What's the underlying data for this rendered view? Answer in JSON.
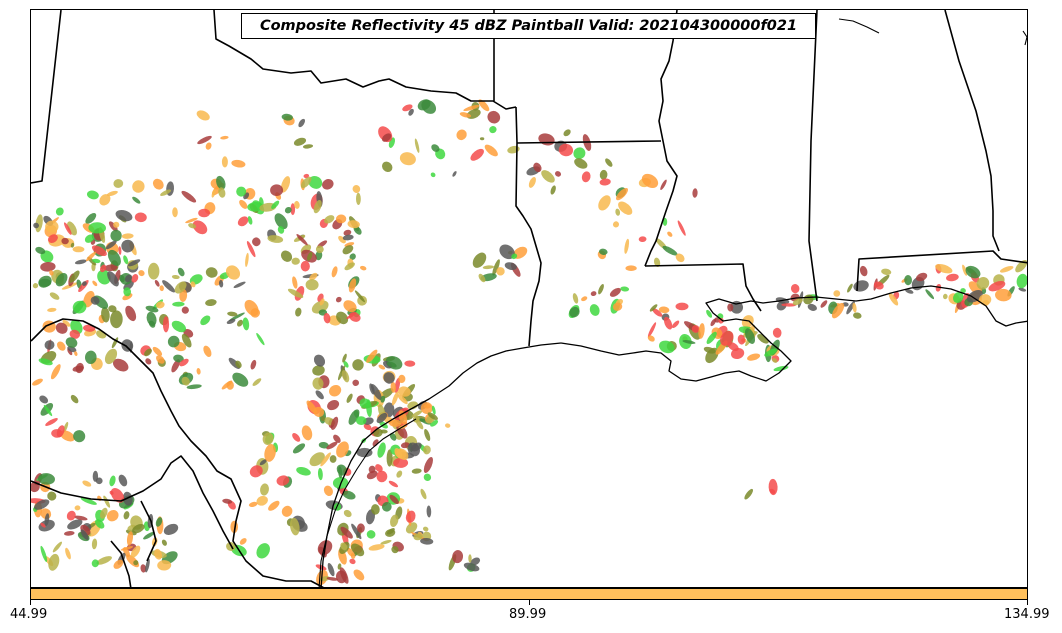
{
  "title": "Composite Reflectivity 45 dBZ Paintball Valid: 202104300000f021",
  "colorbar": {
    "color": "#ffc05c",
    "tick_labels": [
      "44.99",
      "89.99",
      "134.99"
    ]
  },
  "colors": {
    "member_colors": [
      "#f44b4b",
      "#a83c3c",
      "#ff9f3a",
      "#f8b84e",
      "#b7b34a",
      "#3fd83f",
      "#3c8b3c",
      "#585858",
      "#7a8a2a"
    ]
  }
}
